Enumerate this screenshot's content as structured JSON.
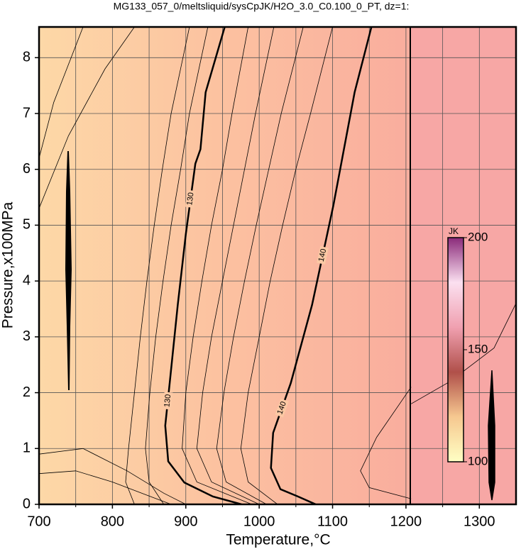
{
  "chart_data": {
    "type": "contour",
    "title": "MG133_057_0/meltsliquid/sysCpJK/H2O_3.0_C0.100_0_PT, dz=1:",
    "x_label": "Temperature,°C",
    "y_label": "Pressure,x100MPa",
    "xlim": [
      700,
      1350
    ],
    "ylim": [
      0,
      8.55
    ],
    "xticks": [
      700,
      800,
      900,
      1000,
      1100,
      1200,
      1300
    ],
    "xgrid": [
      750,
      850,
      950,
      1050,
      1150,
      1250
    ],
    "yticks": [
      0,
      1,
      2,
      3,
      4,
      5,
      6,
      7,
      8
    ],
    "grid": true,
    "colorbar": {
      "label": "JK",
      "lim": [
        100,
        200
      ],
      "ticks": [
        100,
        150,
        200
      ],
      "colors": [
        "#ffffc4",
        "#f6c890",
        "#b0504a",
        "#f0a0b0",
        "#fbe0f0",
        "#8a2a7a"
      ]
    },
    "contours": [
      {
        "label": "130",
        "level": 130,
        "bold": true,
        "x": [
          953,
          927,
          920,
          913,
          900,
          889,
          879,
          872,
          876,
          898,
          937,
          976
        ],
        "y": [
          8.55,
          7.38,
          6.36,
          6.1,
          4.84,
          3.57,
          2.3,
          1.41,
          0.77,
          0.39,
          0.14,
          0
        ]
      },
      {
        "label": "140",
        "level": 140,
        "bold": true,
        "x": [
          1153,
          1130,
          1101,
          1072,
          1043,
          1019,
          1016,
          1029,
          1053,
          1077
        ],
        "y": [
          8.55,
          7.38,
          5.35,
          3.57,
          2.17,
          1.28,
          0.65,
          0.27,
          0.14,
          0
        ]
      },
      {
        "x": [
          905,
          880,
          868,
          857,
          847,
          838,
          830,
          822,
          818,
          830
        ],
        "y": [
          8.55,
          7,
          6,
          5,
          4,
          3,
          2,
          1,
          0.4,
          0
        ]
      },
      {
        "x": [
          930,
          905,
          893,
          880,
          869,
          859,
          851,
          845,
          850,
          870
        ],
        "y": [
          8.55,
          7,
          6,
          5,
          4,
          3,
          2,
          1,
          0.4,
          0
        ]
      },
      {
        "x": [
          985,
          963,
          950,
          935,
          922,
          910,
          900,
          895,
          915,
          990
        ],
        "y": [
          8.55,
          7,
          6,
          5,
          4,
          3,
          2,
          1,
          0.4,
          0
        ]
      },
      {
        "x": [
          1020,
          995,
          980,
          965,
          950,
          935,
          923,
          915,
          935,
          1000
        ],
        "y": [
          8.55,
          7,
          6,
          5,
          4,
          3,
          2,
          1,
          0.4,
          0
        ]
      },
      {
        "x": [
          1060,
          1030,
          1013,
          996,
          980,
          965,
          952,
          942,
          955,
          1010
        ],
        "y": [
          8.55,
          7,
          6,
          5,
          4,
          3,
          2,
          1,
          0.4,
          0
        ]
      },
      {
        "x": [
          1100,
          1070,
          1050,
          1032,
          1015,
          1000,
          985,
          975,
          985,
          1025
        ],
        "y": [
          8.55,
          7,
          6,
          5,
          4,
          3,
          2,
          1,
          0.4,
          0
        ]
      },
      {
        "x": [
          700,
          750,
          800,
          850,
          880
        ],
        "y": [
          0.55,
          0.6,
          0.4,
          0.15,
          0
        ]
      },
      {
        "x": [
          700,
          760,
          820,
          870,
          900
        ],
        "y": [
          0.9,
          1.0,
          0.6,
          0.2,
          0
        ]
      },
      {
        "x": [
          1207,
          1160,
          1138,
          1150,
          1207
        ],
        "y": [
          2.1,
          1.2,
          0.6,
          0.3,
          0.1
        ]
      },
      {
        "x": [
          1207,
          1260,
          1320,
          1350
        ],
        "y": [
          1.8,
          2.2,
          2.8,
          3.6
        ]
      },
      {
        "x": [
          700,
          740,
          790,
          830
        ],
        "y": [
          5.3,
          6.6,
          7.8,
          8.55
        ]
      },
      {
        "x": [
          700,
          720,
          760
        ],
        "y": [
          6.2,
          7.2,
          8.55
        ]
      }
    ]
  }
}
